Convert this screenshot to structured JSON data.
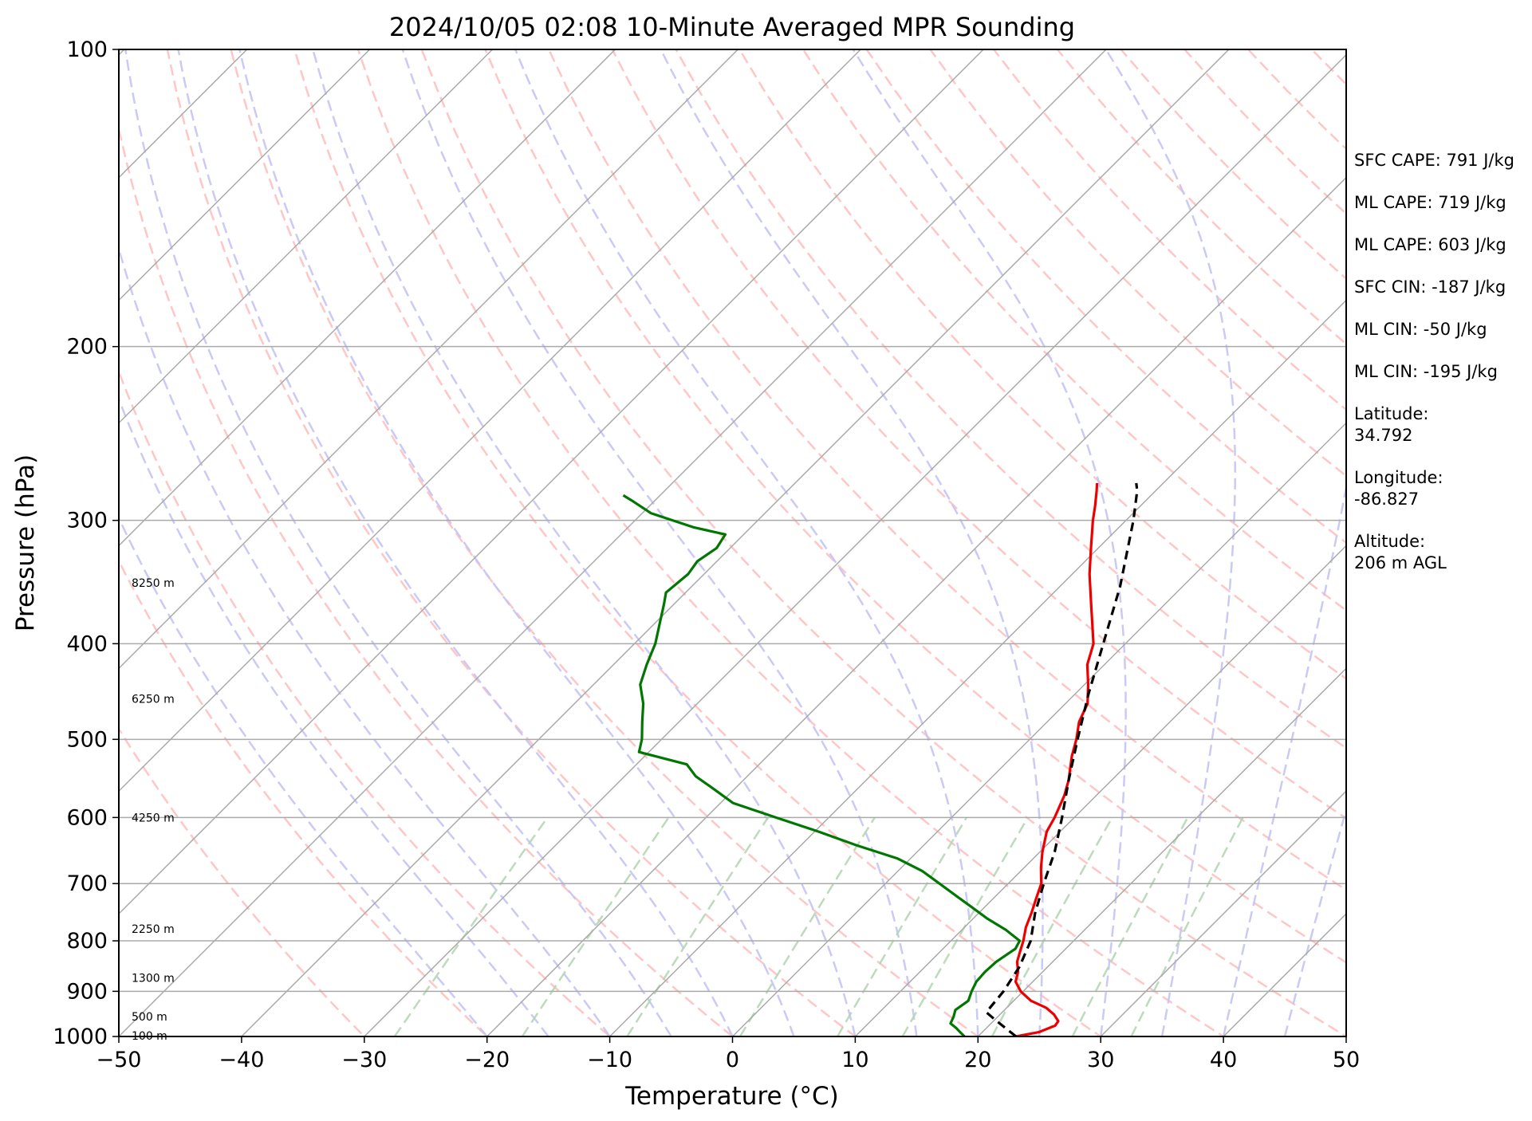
{
  "chart_data": {
    "type": "line",
    "subtype": "skew-t log-p sounding",
    "title": "2024/10/05 02:08 10-Minute Averaged MPR Sounding",
    "xlabel": "Temperature (°C)",
    "ylabel": "Pressure (hPa)",
    "xlim": [
      -50,
      50
    ],
    "ylim": [
      1000,
      100
    ],
    "y_scale": "log",
    "x_ticks": [
      -50,
      -40,
      -30,
      -20,
      -10,
      0,
      10,
      20,
      30,
      40,
      50
    ],
    "x_tick_labels": [
      "−50",
      "−40",
      "−30",
      "−20",
      "−10",
      "0",
      "10",
      "20",
      "30",
      "40",
      "50"
    ],
    "y_ticks": [
      100,
      200,
      300,
      400,
      500,
      600,
      700,
      800,
      900,
      1000
    ],
    "y_tick_labels": [
      "100",
      "200",
      "300",
      "400",
      "500",
      "600",
      "700",
      "800",
      "900",
      "1000"
    ],
    "height_labels": [
      {
        "p": 347,
        "text": "8250 m"
      },
      {
        "p": 455,
        "text": "6250 m"
      },
      {
        "p": 600,
        "text": "4250 m"
      },
      {
        "p": 778,
        "text": "2250 m"
      },
      {
        "p": 872,
        "text": "1300 m"
      },
      {
        "p": 955,
        "text": "500 m"
      },
      {
        "p": 998,
        "text": "100 m"
      }
    ],
    "grid": true,
    "background_lines": {
      "isotherm_color": "#aaaaaa",
      "dry_adiabat_color": "#ffb3b3",
      "moist_adiabat_color": "#c4c4f5",
      "mixing_ratio_color": "#b4d7b4"
    },
    "series": [
      {
        "role": "temperature",
        "color": "#ee0000",
        "style": "solid",
        "points": [
          [
            1000,
            23.1
          ],
          [
            990,
            24.6
          ],
          [
            975,
            25.4
          ],
          [
            965,
            25.3
          ],
          [
            950,
            24.4
          ],
          [
            935,
            23.2
          ],
          [
            920,
            21.4
          ],
          [
            900,
            19.8
          ],
          [
            880,
            18.6
          ],
          [
            860,
            18.0
          ],
          [
            840,
            17.1
          ],
          [
            820,
            16.5
          ],
          [
            800,
            15.9
          ],
          [
            775,
            15.0
          ],
          [
            750,
            14.3
          ],
          [
            725,
            13.5
          ],
          [
            700,
            12.7
          ],
          [
            675,
            11.4
          ],
          [
            650,
            10.2
          ],
          [
            620,
            8.9
          ],
          [
            600,
            8.4
          ],
          [
            570,
            7.4
          ],
          [
            550,
            6.5
          ],
          [
            520,
            4.8
          ],
          [
            500,
            3.8
          ],
          [
            480,
            2.6
          ],
          [
            460,
            1.8
          ],
          [
            440,
            0.3
          ],
          [
            420,
            -1.4
          ],
          [
            400,
            -2.6
          ],
          [
            380,
            -4.5
          ],
          [
            360,
            -6.5
          ],
          [
            340,
            -8.6
          ],
          [
            320,
            -10.6
          ],
          [
            300,
            -12.7
          ],
          [
            290,
            -13.7
          ],
          [
            280,
            -14.8
          ],
          [
            275,
            -15.4
          ]
        ]
      },
      {
        "role": "dewpoint",
        "color": "#007700",
        "style": "solid",
        "points": [
          [
            1000,
            18.9
          ],
          [
            990,
            18.2
          ],
          [
            980,
            17.5
          ],
          [
            970,
            16.7
          ],
          [
            955,
            16.4
          ],
          [
            940,
            16.0
          ],
          [
            920,
            16.3
          ],
          [
            900,
            15.8
          ],
          [
            880,
            15.4
          ],
          [
            860,
            15.3
          ],
          [
            840,
            15.4
          ],
          [
            815,
            15.9
          ],
          [
            800,
            15.6
          ],
          [
            780,
            13.6
          ],
          [
            760,
            11.2
          ],
          [
            740,
            9.0
          ],
          [
            725,
            7.3
          ],
          [
            700,
            4.4
          ],
          [
            680,
            2.0
          ],
          [
            660,
            -1.1
          ],
          [
            640,
            -5.5
          ],
          [
            620,
            -9.7
          ],
          [
            600,
            -14.3
          ],
          [
            580,
            -19.0
          ],
          [
            560,
            -21.9
          ],
          [
            545,
            -24.2
          ],
          [
            530,
            -25.9
          ],
          [
            515,
            -30.8
          ],
          [
            500,
            -31.6
          ],
          [
            480,
            -33.0
          ],
          [
            460,
            -34.4
          ],
          [
            440,
            -36.2
          ],
          [
            420,
            -37.3
          ],
          [
            400,
            -38.3
          ],
          [
            380,
            -39.7
          ],
          [
            365,
            -40.8
          ],
          [
            355,
            -41.6
          ],
          [
            340,
            -41.3
          ],
          [
            330,
            -41.6
          ],
          [
            320,
            -41.1
          ],
          [
            310,
            -41.5
          ],
          [
            305,
            -44.6
          ],
          [
            295,
            -49.3
          ],
          [
            287,
            -51.7
          ],
          [
            283,
            -53.0
          ]
        ]
      },
      {
        "role": "parcel",
        "color": "#000000",
        "style": "dashed",
        "points": [
          [
            1000,
            23.1
          ],
          [
            960,
            19.9
          ],
          [
            945,
            18.7
          ],
          [
            900,
            18.4
          ],
          [
            850,
            17.7
          ],
          [
            800,
            16.5
          ],
          [
            750,
            14.6
          ],
          [
            700,
            12.9
          ],
          [
            650,
            11.2
          ],
          [
            600,
            9.0
          ],
          [
            550,
            6.5
          ],
          [
            500,
            3.9
          ],
          [
            450,
            1.1
          ],
          [
            400,
            -1.8
          ],
          [
            350,
            -5.1
          ],
          [
            300,
            -9.4
          ],
          [
            280,
            -11.5
          ],
          [
            275,
            -12.2
          ]
        ]
      }
    ],
    "annotations": [
      "SFC CAPE: 791 J/kg",
      "ML CAPE: 719 J/kg",
      "ML CAPE: 603 J/kg",
      "SFC CIN: -187 J/kg",
      "ML CIN: -50 J/kg",
      "ML CIN: -195 J/kg",
      "Latitude:\n34.792",
      "Longitude:\n-86.827",
      "Altitude:\n206 m AGL"
    ]
  }
}
